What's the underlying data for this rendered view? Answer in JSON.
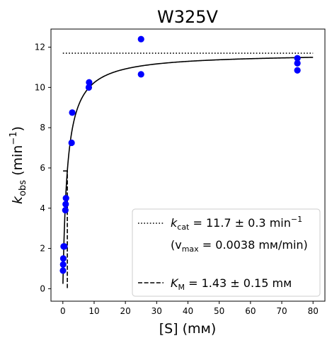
{
  "chart_data": {
    "type": "scatter",
    "title": "W325V",
    "xlabel": "[S] (mᴍ)",
    "ylabel": "k_obs (min⁻¹)",
    "xlim": [
      -3.8,
      83.8
    ],
    "ylim": [
      -0.62,
      12.9
    ],
    "xticks": [
      0,
      10,
      20,
      30,
      40,
      50,
      60,
      70,
      80
    ],
    "yticks": [
      0,
      2,
      4,
      6,
      8,
      10,
      12
    ],
    "grid": false,
    "legend_placement": "lower-right",
    "points_color": "#0000ff",
    "points": [
      {
        "x": 0.05,
        "y": 0.9
      },
      {
        "x": 0.1,
        "y": 1.2
      },
      {
        "x": 0.15,
        "y": 1.5
      },
      {
        "x": 0.25,
        "y": 2.1
      },
      {
        "x": 0.5,
        "y": 2.1
      },
      {
        "x": 0.8,
        "y": 3.9
      },
      {
        "x": 0.9,
        "y": 4.2
      },
      {
        "x": 1.0,
        "y": 4.5
      },
      {
        "x": 2.8,
        "y": 7.25
      },
      {
        "x": 3.0,
        "y": 8.75
      },
      {
        "x": 8.3,
        "y": 10.0
      },
      {
        "x": 8.4,
        "y": 10.25
      },
      {
        "x": 25.0,
        "y": 10.65
      },
      {
        "x": 25.0,
        "y": 12.4
      },
      {
        "x": 75.0,
        "y": 10.85
      },
      {
        "x": 75.0,
        "y": 11.2
      },
      {
        "x": 75.0,
        "y": 11.45
      }
    ],
    "fit": {
      "kcat": 11.7,
      "km": 1.43,
      "x_start": 0.03,
      "x_end": 80
    },
    "kcat_line": {
      "y": 11.7,
      "x_start": 0,
      "x_end": 80
    },
    "km_line": {
      "x": 1.43,
      "y_top": 5.85
    },
    "legend": {
      "kcat_prefix": "k",
      "kcat_sub": "cat",
      "kcat_rest": " = 11.7 ± 0.3 min",
      "kcat_sup": "−1",
      "vmax_open": "(v",
      "vmax_sub": "max",
      "vmax_rest": " = 0.0038 mᴍ/min)",
      "km_prefix": "K",
      "km_sub": "M",
      "km_rest": " = 1.43 ± 0.15 mᴍ"
    }
  }
}
